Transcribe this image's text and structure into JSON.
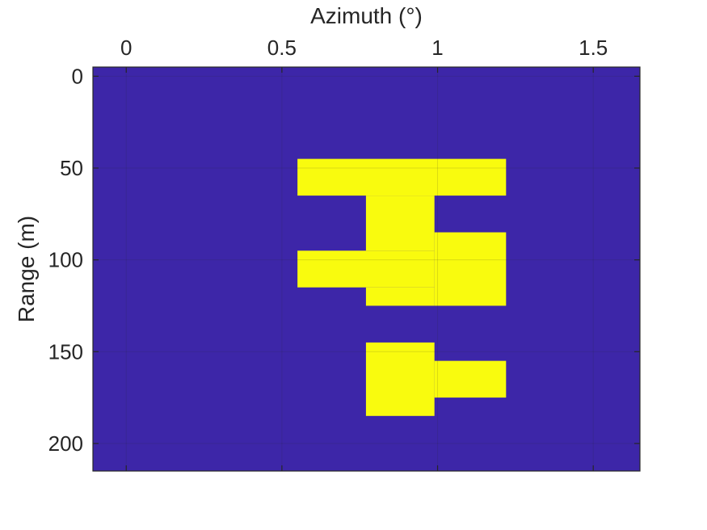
{
  "chart_data": {
    "type": "heatmap",
    "title": "",
    "xlabel": "Azimuth (°)",
    "ylabel": "Range (m)",
    "xlim": [
      -0.107,
      1.65
    ],
    "ylim": [
      215,
      -5
    ],
    "y_reversed": true,
    "x_axis_position": "top",
    "x_ticks": [
      0,
      0.5,
      1,
      1.5
    ],
    "x_tick_labels": [
      "0",
      "0.5",
      "1",
      "1.5"
    ],
    "y_ticks": [
      0,
      50,
      100,
      150,
      200
    ],
    "y_tick_labels": [
      "0",
      "50",
      "100",
      "150",
      "200"
    ],
    "grid": true,
    "background_value": 0,
    "colors": {
      "background": "#3d26a8",
      "detection": "#f9fb0e"
    },
    "cells": [
      {
        "x_range": [
          0.55,
          1.22
        ],
        "y_range": [
          45,
          65
        ],
        "value": 1
      },
      {
        "x_range": [
          0.77,
          0.99
        ],
        "y_range": [
          65,
          95
        ],
        "value": 1
      },
      {
        "x_range": [
          0.99,
          1.22
        ],
        "y_range": [
          85,
          125
        ],
        "value": 1
      },
      {
        "x_range": [
          0.55,
          0.99
        ],
        "y_range": [
          95,
          115
        ],
        "value": 1
      },
      {
        "x_range": [
          0.77,
          0.99
        ],
        "y_range": [
          115,
          125
        ],
        "value": 1
      },
      {
        "x_range": [
          0.77,
          0.99
        ],
        "y_range": [
          145,
          185
        ],
        "value": 1
      },
      {
        "x_range": [
          0.99,
          1.22
        ],
        "y_range": [
          155,
          175
        ],
        "value": 1
      }
    ]
  }
}
